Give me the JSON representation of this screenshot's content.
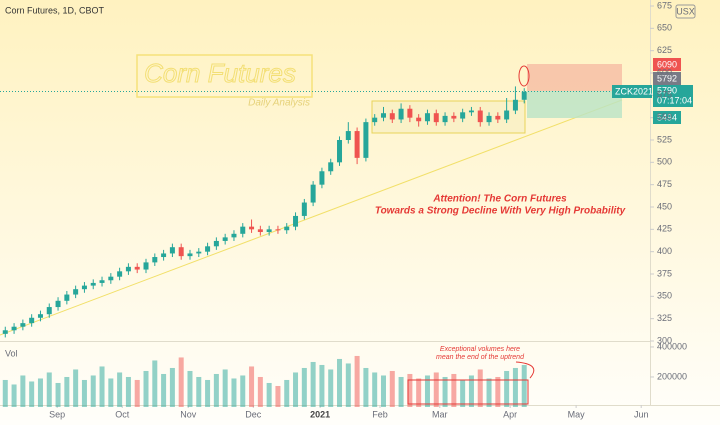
{
  "chart_data": {
    "type": "candlestick",
    "title": "Corn Futures, 1D, CBOT",
    "currency": "USX",
    "watermark": "Corn Futures",
    "watermark_sub": "Daily Analysis",
    "annotation": [
      "Attention! The Corn Futures",
      "Towards a Strong Decline With Very High Probability"
    ],
    "volume_note": [
      "Exceptional volumes here",
      "mean the end of the uptrend"
    ],
    "volume_label": "Vol",
    "ticker": "ZCK2021",
    "countdown": "07:17:04",
    "price_tags": [
      "6090",
      "5792",
      "5790",
      "5494"
    ],
    "up_color": "#26a69a",
    "down_color": "#ef5350",
    "xlim": [
      -0.6,
      73.3
    ],
    "xticks": [
      {
        "value": 5.9,
        "label": "Sep"
      },
      {
        "value": 13.3,
        "label": "Oct"
      },
      {
        "value": 20.8,
        "label": "Nov"
      },
      {
        "value": 28.2,
        "label": "Dec"
      },
      {
        "value": 35.8,
        "label": "2021"
      },
      {
        "value": 42.6,
        "label": "Feb"
      },
      {
        "value": 49.4,
        "label": "Mar"
      },
      {
        "value": 57.4,
        "label": "Apr"
      },
      {
        "value": 64.9,
        "label": "May"
      },
      {
        "value": 72.3,
        "label": "Jun"
      }
    ],
    "ylim": [
      300,
      675
    ],
    "yticks": [
      675,
      650,
      625,
      600,
      575,
      550,
      525,
      500,
      475,
      450,
      425,
      400,
      375,
      350,
      325,
      300
    ],
    "vol_ylim": [
      0,
      433000
    ],
    "vol_ticks": [
      400000,
      200000
    ],
    "open": [
      308,
      312,
      316,
      320,
      326,
      330,
      338,
      345,
      352,
      358,
      362,
      365,
      368,
      372,
      378,
      383,
      380,
      388,
      394,
      398,
      405,
      395,
      398,
      400,
      406,
      412,
      416,
      420,
      428,
      425,
      422,
      425,
      424,
      428,
      440,
      455,
      475,
      490,
      500,
      525,
      535,
      505,
      545,
      550,
      555,
      548,
      560,
      550,
      546,
      555,
      545,
      552,
      549,
      556,
      558,
      545,
      552,
      548,
      558,
      570
    ],
    "high": [
      316,
      320,
      324,
      330,
      334,
      342,
      349,
      356,
      362,
      366,
      369,
      372,
      376,
      382,
      387,
      387,
      392,
      398,
      402,
      409,
      409,
      402,
      404,
      410,
      416,
      420,
      424,
      432,
      436,
      429,
      429,
      429,
      432,
      444,
      459,
      479,
      494,
      504,
      529,
      545,
      539,
      549,
      554,
      562,
      559,
      566,
      564,
      554,
      559,
      559,
      556,
      556,
      560,
      562,
      562,
      556,
      556,
      572,
      585,
      583
    ],
    "low": [
      304,
      308,
      312,
      316,
      322,
      326,
      334,
      341,
      348,
      354,
      358,
      361,
      364,
      368,
      374,
      376,
      376,
      384,
      390,
      394,
      391,
      391,
      394,
      396,
      402,
      408,
      412,
      416,
      421,
      418,
      418,
      420,
      420,
      424,
      436,
      451,
      471,
      486,
      496,
      521,
      498,
      501,
      541,
      546,
      544,
      544,
      545,
      540,
      542,
      541,
      541,
      545,
      545,
      552,
      540,
      541,
      544,
      544,
      554,
      566
    ],
    "close": [
      312,
      316,
      320,
      326,
      330,
      338,
      345,
      352,
      358,
      362,
      365,
      368,
      372,
      378,
      383,
      380,
      388,
      394,
      398,
      405,
      395,
      398,
      400,
      406,
      412,
      416,
      420,
      428,
      425,
      422,
      425,
      424,
      428,
      440,
      455,
      475,
      490,
      500,
      525,
      535,
      505,
      545,
      550,
      555,
      548,
      560,
      550,
      546,
      555,
      545,
      552,
      549,
      556,
      558,
      545,
      552,
      548,
      558,
      570,
      579
    ],
    "volume": [
      180000,
      150000,
      210000,
      170000,
      190000,
      230000,
      160000,
      200000,
      250000,
      180000,
      210000,
      270000,
      190000,
      230000,
      200000,
      180000,
      240000,
      310000,
      220000,
      260000,
      330000,
      240000,
      200000,
      180000,
      220000,
      250000,
      190000,
      210000,
      270000,
      200000,
      160000,
      140000,
      180000,
      230000,
      260000,
      300000,
      280000,
      250000,
      320000,
      290000,
      340000,
      260000,
      230000,
      210000,
      240000,
      200000,
      220000,
      190000,
      210000,
      230000,
      200000,
      220000,
      180000,
      210000,
      250000,
      190000,
      200000,
      240000,
      260000,
      280000
    ]
  }
}
